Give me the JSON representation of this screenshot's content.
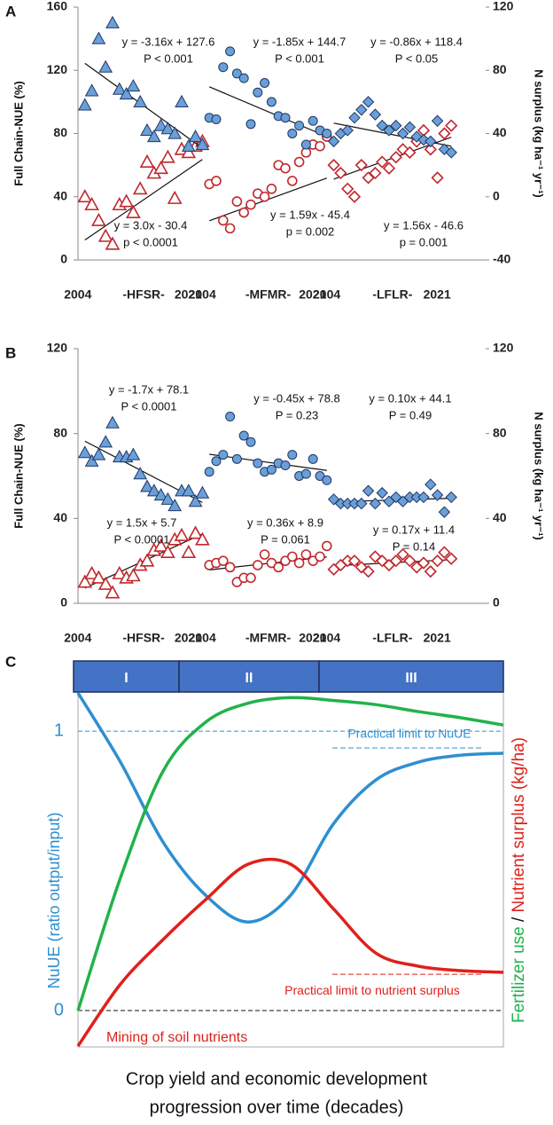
{
  "chart_data": [
    {
      "type": "scatter",
      "label": "A",
      "ylabel": "Full Chain-NUE (%)",
      "y2label": "N surplus (kg ha⁻¹ yr⁻¹)",
      "ylim": [
        0,
        160
      ],
      "yticks": [
        0,
        40,
        80,
        120,
        160
      ],
      "y2lim": [
        -40,
        120
      ],
      "y2ticks": [
        -40,
        0,
        40,
        80,
        120
      ],
      "groups": [
        {
          "name": "-HFSR-",
          "start": "2004",
          "end": "2021",
          "marker": "triangle",
          "nue": {
            "color": "#6a9fd8",
            "values": [
              98,
              107,
              140,
              122,
              150,
              108,
              105,
              110,
              100,
              82,
              78,
              85,
              83,
              80,
              100,
              72,
              78,
              73
            ],
            "fit": [
              -3.16,
              127.6
            ],
            "equation": "y = -3.16x + 127.6",
            "p": "P < 0.001"
          },
          "surplus": {
            "axis": "y2",
            "color": "#c0282d",
            "values": [
              0,
              -5,
              -15,
              -25,
              -30,
              -5,
              -3,
              -10,
              5,
              22,
              15,
              18,
              25,
              -1,
              30,
              28,
              32,
              35
            ],
            "fit": [
              3.0,
              -30.4
            ],
            "equation": "y = 3.0x - 30.4",
            "p": "p < 0.0001"
          }
        },
        {
          "name": "-MFMR-",
          "start": "2004",
          "end": "2021",
          "marker": "circle",
          "nue": {
            "color": "#6a9fd8",
            "values": [
              90,
              89,
              122,
              132,
              118,
              115,
              86,
              106,
              112,
              100,
              91,
              90,
              80,
              85,
              73,
              88,
              82,
              80
            ],
            "fit": [
              -1.85,
              144.7
            ],
            "equation": "y = -1.85x + 144.7",
            "p": "P < 0.001"
          },
          "surplus": {
            "axis": "y2",
            "color": "#c0282d",
            "values": [
              8,
              10,
              -15,
              -20,
              -3,
              -10,
              -5,
              2,
              0,
              5,
              20,
              18,
              10,
              22,
              28,
              33,
              32,
              38
            ],
            "fit": [
              1.59,
              -45.4
            ],
            "equation": "y = 1.59x - 45.4",
            "p": "p = 0.002"
          }
        },
        {
          "name": "-LFLR-",
          "start": "2004",
          "end": "2021",
          "marker": "diamond",
          "nue": {
            "color": "#6a9fd8",
            "values": [
              75,
              80,
              82,
              90,
              95,
              100,
              92,
              85,
              82,
              85,
              80,
              84,
              78,
              76,
              75,
              88,
              70,
              68
            ],
            "fit": [
              -0.86,
              118.4
            ],
            "equation": "y = -0.86x + 118.4",
            "p": "P < 0.05"
          },
          "surplus": {
            "axis": "y2",
            "color": "#c0282d",
            "values": [
              20,
              15,
              5,
              0,
              20,
              12,
              15,
              22,
              18,
              25,
              30,
              28,
              35,
              42,
              30,
              12,
              40,
              45
            ],
            "fit": [
              1.56,
              -46.6
            ],
            "equation": "y = 1.56x - 46.6",
            "p": "p = 0.001"
          }
        }
      ]
    },
    {
      "type": "scatter",
      "label": "B",
      "ylabel": "Full Chain-NUE (%)",
      "y2label": "N surplus (kg ha⁻¹ yr⁻¹)",
      "ylim": [
        0,
        120
      ],
      "yticks": [
        0,
        40,
        80,
        120
      ],
      "y2lim": [
        0,
        120
      ],
      "y2ticks": [
        0,
        40,
        80,
        120
      ],
      "groups": [
        {
          "name": "-HFSR-",
          "start": "2004",
          "end": "2021",
          "marker": "triangle",
          "nue": {
            "color": "#6a9fd8",
            "values": [
              71,
              67,
              70,
              76,
              85,
              69,
              69,
              70,
              61,
              55,
              53,
              51,
              49,
              46,
              53,
              53,
              48,
              52
            ],
            "fit": [
              -1.7,
              78.1
            ],
            "equation": "y = -1.7x + 78.1",
            "p": "P < 0.0001"
          },
          "surplus": {
            "axis": "y2",
            "color": "#c0282d",
            "values": [
              10,
              14,
              12,
              9,
              5,
              14,
              12,
              13,
              18,
              20,
              25,
              27,
              24,
              30,
              32,
              24,
              33,
              30
            ],
            "fit": [
              1.5,
              5.7
            ],
            "equation": "y = 1.5x + 5.7",
            "p": "P < 0.0001"
          }
        },
        {
          "name": "-MFMR-",
          "start": "2004",
          "end": "2021",
          "marker": "circle",
          "nue": {
            "color": "#6a9fd8",
            "values": [
              62,
              67,
              70,
              88,
              68,
              79,
              76,
              66,
              62,
              63,
              66,
              65,
              70,
              60,
              61,
              68,
              60,
              58
            ],
            "fit": [
              -0.45,
              78.8
            ],
            "equation": "y = -0.45x + 78.8",
            "p": "P = 0.23"
          },
          "surplus": {
            "axis": "y2",
            "color": "#c0282d",
            "values": [
              18,
              19,
              20,
              17,
              10,
              12,
              12,
              18,
              23,
              19,
              17,
              20,
              22,
              19,
              23,
              20,
              22,
              27
            ],
            "fit": [
              0.36,
              8.9
            ],
            "equation": "y = 0.36x + 8.9",
            "p": "P  = 0.061"
          }
        },
        {
          "name": "-LFLR-",
          "start": "2004",
          "end": "2021",
          "marker": "diamond",
          "nue": {
            "color": "#6a9fd8",
            "values": [
              49,
              47,
              47,
              47,
              47,
              53,
              47,
              52,
              48,
              50,
              48,
              50,
              50,
              50,
              56,
              51,
              43,
              50
            ],
            "fit": [
              0.1,
              44.1
            ],
            "equation": "y = 0.10x + 44.1",
            "p": "P = 0.49"
          },
          "surplus": {
            "axis": "y2",
            "color": "#c0282d",
            "values": [
              16,
              18,
              20,
              20,
              17,
              15,
              22,
              20,
              18,
              20,
              23,
              20,
              17,
              19,
              15,
              20,
              24,
              21
            ],
            "fit": [
              0.17,
              11.4
            ],
            "equation": "y = 0.17x + 11.4",
            "p": "P = 0.14"
          }
        }
      ]
    },
    {
      "type": "line",
      "label": "C",
      "phases": [
        "I",
        "II",
        "III"
      ],
      "ylabel": "NuUE (ratio output/input)",
      "y2label_parts": [
        {
          "text": "Fertilizer use",
          "color": "#22b24c"
        },
        {
          "text": " / ",
          "color": "#111111"
        },
        {
          "text": "Nutrient surplus (kg/ha)",
          "color": "#e0201b"
        }
      ],
      "xlabel": [
        "Crop yield and economic development",
        "progression over time (decades)"
      ],
      "xlim": [
        0,
        10
      ],
      "x": [
        0,
        1,
        2,
        3,
        4,
        5,
        6,
        7,
        8,
        9,
        10
      ],
      "ylim": [
        -0.13,
        1.14
      ],
      "yticks": [
        0,
        1
      ],
      "tick_color": "#2e8fd0",
      "grid_colors": [
        "#111111",
        "#2e8fd0"
      ],
      "series": [
        {
          "color": "#2e8fd0",
          "values": [
            1.137,
            0.889,
            0.603,
            0.413,
            0.317,
            0.413,
            0.667,
            0.825,
            0.889,
            0.914,
            0.921
          ]
        },
        {
          "color": "#22b24c",
          "values": [
            0,
            0.476,
            0.857,
            1.032,
            1.1,
            1.12,
            1.11,
            1.095,
            1.07,
            1.048,
            1.022
          ]
        },
        {
          "color": "#e0201b",
          "values": [
            -0.127,
            0.095,
            0.254,
            0.397,
            0.524,
            0.524,
            0.365,
            0.206,
            0.159,
            0.143,
            0.137
          ]
        }
      ],
      "limits": [
        {
          "label": "Practical limit to NuUE",
          "value": 0.94,
          "color": "#2e8fd0"
        },
        {
          "label": "Practical limit to nutrient surplus",
          "value": 0.13,
          "color": "#e0201b"
        }
      ],
      "annotation": {
        "text": "Mining of soil nutrients",
        "color": "#e0201b"
      }
    }
  ]
}
